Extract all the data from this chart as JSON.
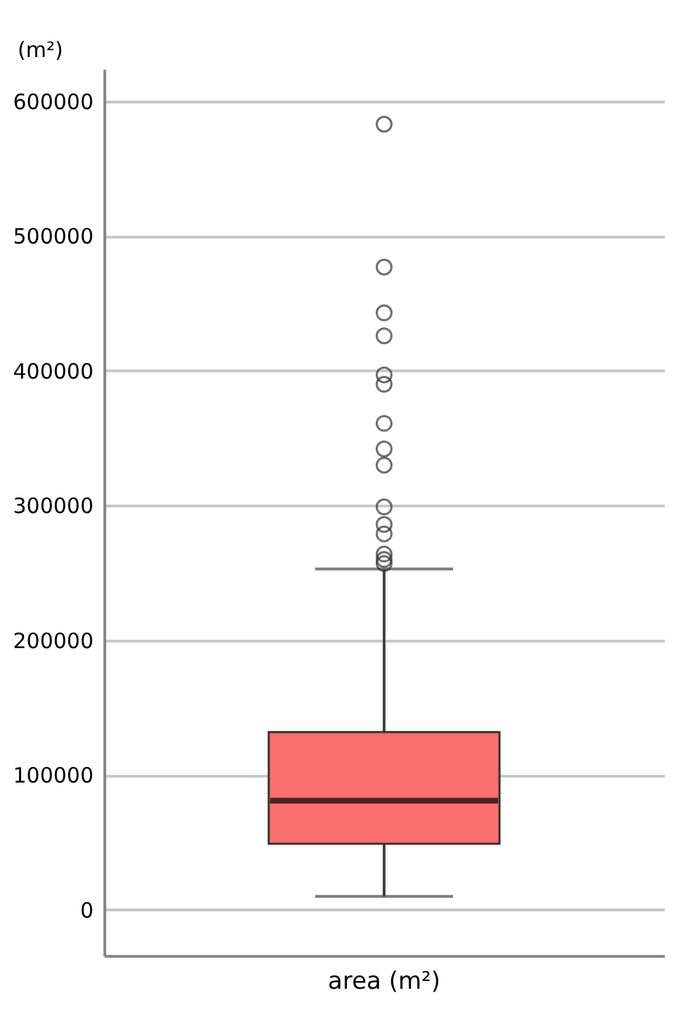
{
  "chart_data": {
    "type": "box",
    "ylabel": "(m²)",
    "categories": [
      "area (m²)"
    ],
    "color": "#fa6e6e",
    "boxes": [
      {
        "low": 10000,
        "q1": 49000,
        "median": 81000,
        "q3": 132000,
        "high": 253000,
        "outliers": [
          583000,
          477000,
          443000,
          426000,
          397000,
          390000,
          361000,
          342000,
          330000,
          299000,
          286000,
          279000,
          264000,
          260000,
          257000
        ]
      }
    ],
    "ylim": [
      -34000,
      624000
    ],
    "yticks": [
      0,
      100000,
      200000,
      300000,
      400000,
      500000,
      600000
    ],
    "grid": "y"
  }
}
